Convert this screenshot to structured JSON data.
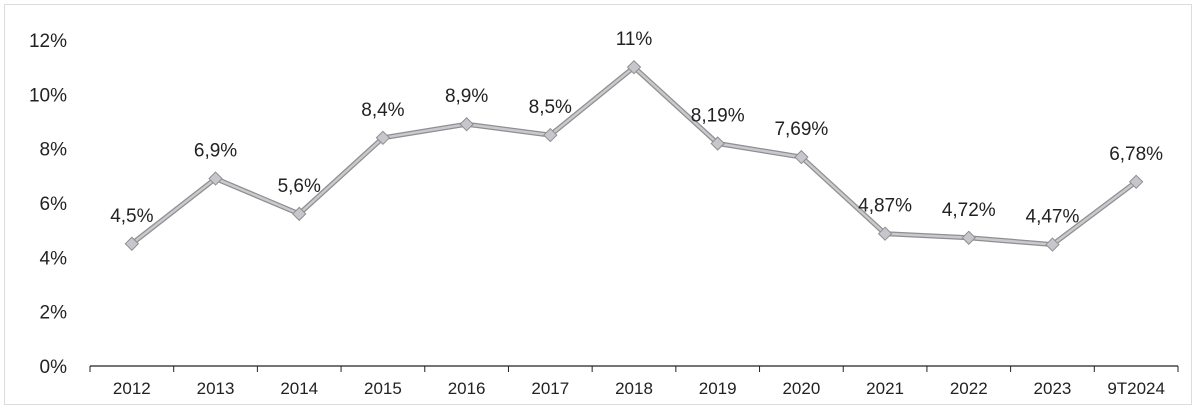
{
  "chart_data": {
    "type": "line",
    "title": "",
    "xlabel": "",
    "ylabel": "",
    "categories": [
      "2012",
      "2013",
      "2014",
      "2015",
      "2016",
      "2017",
      "2018",
      "2019",
      "2020",
      "2021",
      "2022",
      "2023",
      "9T2024"
    ],
    "series": [
      {
        "values": [
          4.5,
          6.9,
          5.6,
          8.4,
          8.9,
          8.5,
          11,
          8.19,
          7.69,
          4.87,
          4.72,
          4.47,
          6.78
        ],
        "labels": [
          "4,5%",
          "6,9%",
          "5,6%",
          "8,4%",
          "8,9%",
          "8,5%",
          "11%",
          "8,19%",
          "7,69%",
          "4,87%",
          "4,72%",
          "4,47%",
          "6,78%"
        ]
      }
    ],
    "ylim": [
      0,
      12
    ],
    "yticks": [
      0,
      2,
      4,
      6,
      8,
      10,
      12
    ],
    "ytick_labels": [
      "0%",
      "2%",
      "4%",
      "6%",
      "8%",
      "10%",
      "12%"
    ],
    "grid": false,
    "legend": "none",
    "colors": {
      "line": "#c9c9cf",
      "line_edge": "#8f8f8f",
      "marker": "#c6c6cc"
    }
  }
}
